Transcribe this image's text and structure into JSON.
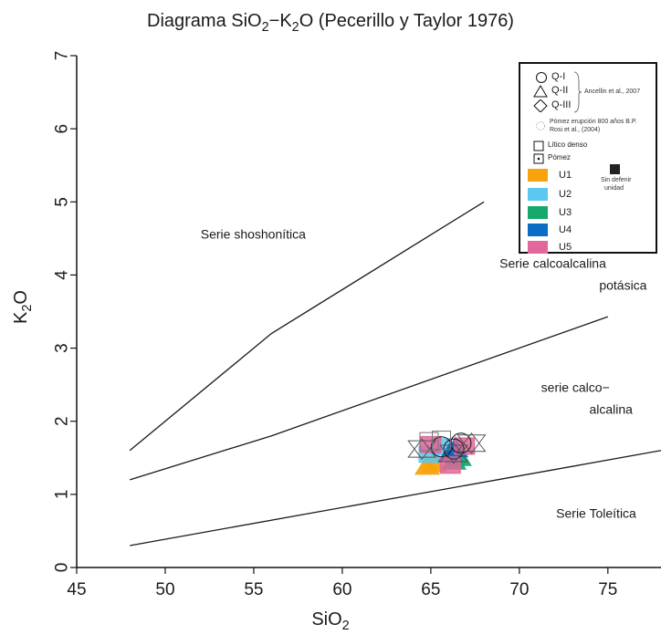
{
  "title_parts": {
    "pre": "Diagrama SiO",
    "sub1": "2",
    "mid": "−K",
    "sub2": "2",
    "post": "O (Pecerillo y Taylor 1976)"
  },
  "xlabel_parts": {
    "pre": "SiO",
    "sub": "2"
  },
  "ylabel_parts": {
    "pre": "K",
    "sub": "2",
    "post": "O"
  },
  "legend": {
    "q1": "Q-I",
    "q2": "Q-II",
    "q3": "Q-III",
    "ancellin": "Ancellin et al., 2007",
    "pomez_rosi_1": "Pómez erupción 800 años B.P.",
    "pomez_rosi_2": "Rosi et al., (2004)",
    "litico": "Lítico denso",
    "pomez": "Pómez",
    "u1": "U1",
    "u2": "U2",
    "u3": "U3",
    "u4": "U4",
    "u5": "U5",
    "sin_defenir_1": "Sin defenir",
    "sin_defenir_2": "unidad"
  },
  "colors": {
    "u1": "#f7a30c",
    "u2": "#5bc8f2",
    "u3": "#17a86b",
    "u4": "#0a6cc4",
    "u5": "#e2679a",
    "lines": "#1a1a1a"
  },
  "chart_data": {
    "type": "scatter",
    "xlim": [
      45,
      78
    ],
    "ylim": [
      0,
      7
    ],
    "xticks": [
      45,
      50,
      55,
      60,
      65,
      70,
      75
    ],
    "yticks": [
      0,
      1,
      2,
      3,
      4,
      5,
      6,
      7
    ],
    "boundary_lines": [
      {
        "x": [
          48,
          56,
          68
        ],
        "y": [
          1.6,
          3.2,
          5.0
        ]
      },
      {
        "x": [
          48,
          56,
          75
        ],
        "y": [
          1.2,
          1.8,
          3.43
        ]
      },
      {
        "x": [
          48,
          78
        ],
        "y": [
          0.3,
          1.6
        ]
      }
    ],
    "series_labels": [
      {
        "text": "Serie shoshonítica",
        "x": 52,
        "y": 4.5
      },
      {
        "text": "Serie calcoalcalina",
        "x": 74.9,
        "y": 4.1
      },
      {
        "text": "potásica",
        "x": 77.2,
        "y": 3.8
      },
      {
        "text": "serie calco−",
        "x": 75.1,
        "y": 2.4
      },
      {
        "text": "alcalina",
        "x": 76.4,
        "y": 2.1
      },
      {
        "text": "Serie Toleítica",
        "x": 76.6,
        "y": 0.68
      }
    ],
    "points": [
      {
        "group": "U1",
        "x": 64.8,
        "y": 1.38
      },
      {
        "group": "U1",
        "x": 65.2,
        "y": 1.42
      },
      {
        "group": "U2",
        "x": 64.9,
        "y": 1.55
      },
      {
        "group": "U2",
        "x": 65.6,
        "y": 1.65
      },
      {
        "group": "U3",
        "x": 66.3,
        "y": 1.45
      },
      {
        "group": "U3",
        "x": 66.6,
        "y": 1.5
      },
      {
        "group": "U4",
        "x": 66.1,
        "y": 1.55
      },
      {
        "group": "U4",
        "x": 66.4,
        "y": 1.62
      },
      {
        "group": "U5",
        "x": 65.0,
        "y": 1.68
      },
      {
        "group": "U5",
        "x": 66.1,
        "y": 1.4
      },
      {
        "group": "U5",
        "x": 66.9,
        "y": 1.66
      },
      {
        "group": "Q-I",
        "x": 65.6,
        "y": 1.65
      },
      {
        "group": "Q-I",
        "x": 66.3,
        "y": 1.62
      },
      {
        "group": "Q-I",
        "x": 66.7,
        "y": 1.7
      },
      {
        "group": "Q-II",
        "x": 64.5,
        "y": 1.62
      },
      {
        "group": "Q-II",
        "x": 66.3,
        "y": 1.56
      },
      {
        "group": "Q-II",
        "x": 67.3,
        "y": 1.7
      },
      {
        "group": "Lítico denso",
        "x": 64.9,
        "y": 1.72
      },
      {
        "group": "Lítico denso",
        "x": 65.6,
        "y": 1.74
      }
    ]
  }
}
